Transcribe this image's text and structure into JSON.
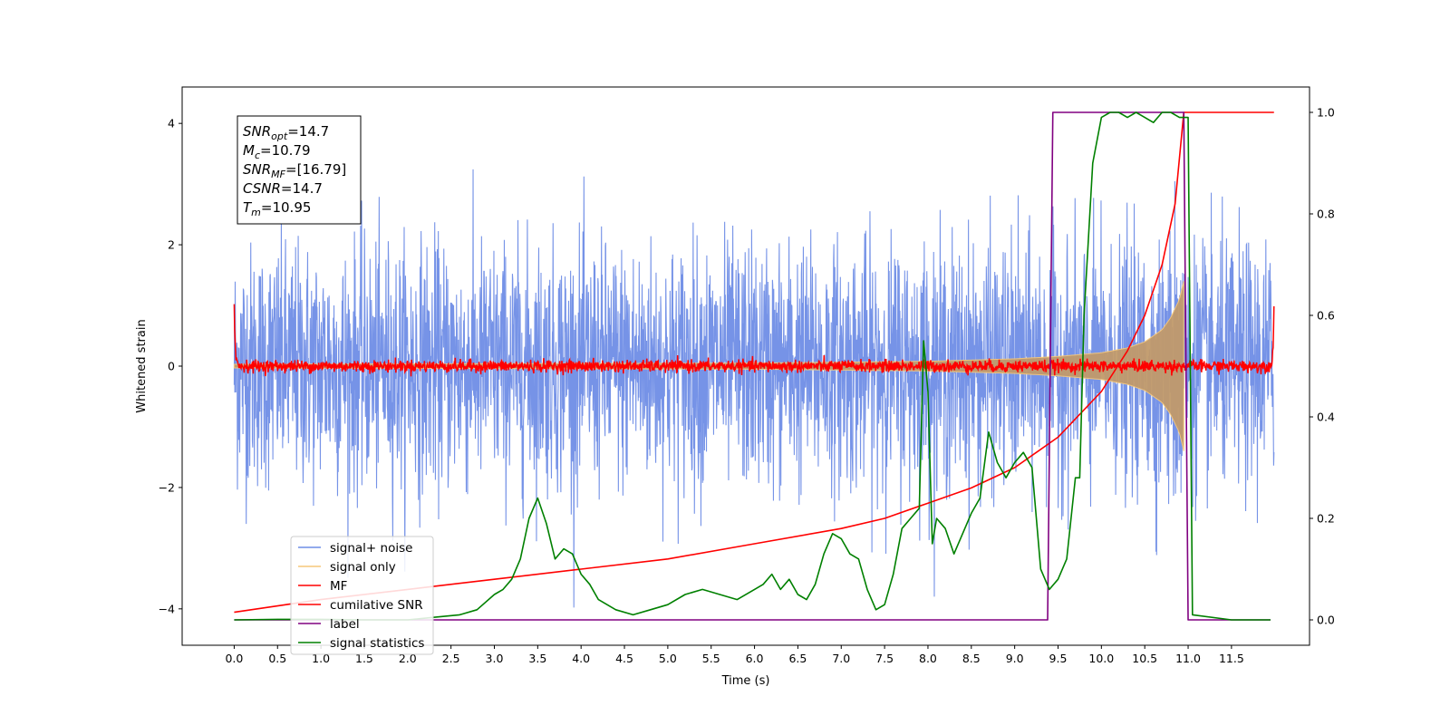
{
  "chart_data": {
    "type": "line",
    "xlabel": "Time (s)",
    "ylabel": "Whitened strain",
    "xlim": [
      -0.6,
      12.4
    ],
    "ylim": [
      -4.6,
      4.6
    ],
    "y2lim": [
      -0.05,
      1.05
    ],
    "x_ticks": [
      0.0,
      0.5,
      1.0,
      1.5,
      2.0,
      2.5,
      3.0,
      3.5,
      4.0,
      4.5,
      5.0,
      5.5,
      6.0,
      6.5,
      7.0,
      7.5,
      8.0,
      8.5,
      9.0,
      9.5,
      10.0,
      10.5,
      11.0,
      11.5
    ],
    "x_tick_labels": [
      "0.0",
      "0.5",
      "1.0",
      "1.5",
      "2.0",
      "2.5",
      "3.0",
      "3.5",
      "4.0",
      "4.5",
      "5.0",
      "5.5",
      "6.0",
      "6.5",
      "7.0",
      "7.5",
      "8.0",
      "8.5",
      "9.0",
      "9.5",
      "10.0",
      "10.5",
      "11.0",
      "11.5"
    ],
    "y_ticks": [
      -4,
      -2,
      0,
      2,
      4
    ],
    "y_tick_labels": [
      "−4",
      "−2",
      "0",
      "2",
      "4"
    ],
    "y2_ticks": [
      0.0,
      0.2,
      0.4,
      0.6,
      0.8,
      1.0
    ],
    "y2_tick_labels": [
      "0.0",
      "0.2",
      "0.4",
      "0.6",
      "0.8",
      "1.0"
    ],
    "legend": {
      "placement": "lower-left",
      "entries": [
        {
          "label": "signal+ noise",
          "color": "#6f8de6"
        },
        {
          "label": "signal only",
          "color": "#f5c77a"
        },
        {
          "label": "MF",
          "color": "#ff0000"
        },
        {
          "label": "cumilative SNR",
          "color": "#ff0000"
        },
        {
          "label": "label",
          "color": "#800080"
        },
        {
          "label": "signal statistics",
          "color": "#008000"
        }
      ]
    },
    "annotation": {
      "placement": "top-left",
      "lines": [
        {
          "var": "SNR",
          "sub": "opt",
          "value": "=14.7"
        },
        {
          "var": "M",
          "sub": "c",
          "value": "=10.79"
        },
        {
          "var": "SNR",
          "sub": "MF",
          "value": "=[16.79]"
        },
        {
          "var": "CSNR",
          "sub": "",
          "value": "=14.7"
        },
        {
          "var": "T",
          "sub": "m",
          "value": "=10.95"
        }
      ]
    },
    "series": [
      {
        "name": "signal+ noise",
        "axis": "left",
        "color": "#6f8de6",
        "x_range": [
          0.0,
          11.99
        ],
        "noise_std": 1.0,
        "peak_extent": [
          -4.1,
          3.8
        ]
      },
      {
        "name": "signal only",
        "axis": "left",
        "color": "#f5c77a",
        "type": "chirp",
        "x_range": [
          0.0,
          10.95
        ],
        "envelope": {
          "x": [
            0.0,
            6.0,
            8.0,
            9.0,
            9.5,
            10.0,
            10.3,
            10.5,
            10.7,
            10.8,
            10.9,
            10.95
          ],
          "y": [
            0.03,
            0.05,
            0.08,
            0.12,
            0.16,
            0.22,
            0.3,
            0.4,
            0.6,
            0.8,
            1.1,
            1.4
          ]
        }
      },
      {
        "name": "MF",
        "axis": "left",
        "color": "#ff0000",
        "x_range": [
          0.0,
          11.99
        ],
        "baseline": 0.0,
        "noise_std": 0.05,
        "edges": [
          [
            0.0,
            1.0
          ],
          [
            11.99,
            0.85
          ]
        ]
      },
      {
        "name": "cumilative SNR",
        "axis": "right",
        "color": "#ff0000",
        "x": [
          0.0,
          1.0,
          2.0,
          3.0,
          4.0,
          5.0,
          6.0,
          7.0,
          7.5,
          8.0,
          8.5,
          9.0,
          9.5,
          10.0,
          10.3,
          10.5,
          10.7,
          10.85,
          10.95,
          11.05,
          11.99
        ],
        "y": [
          0.015,
          0.04,
          0.06,
          0.08,
          0.1,
          0.12,
          0.15,
          0.18,
          0.2,
          0.23,
          0.26,
          0.3,
          0.36,
          0.45,
          0.53,
          0.6,
          0.7,
          0.82,
          1.0,
          1.0,
          1.0
        ]
      },
      {
        "name": "label",
        "axis": "right",
        "color": "#800080",
        "x": [
          0.0,
          9.38,
          9.44,
          10.95,
          11.0,
          11.95
        ],
        "y": [
          0.0,
          0.0,
          1.0,
          1.0,
          0.0,
          0.0
        ]
      },
      {
        "name": "signal statistics",
        "axis": "right",
        "color": "#008000",
        "x": [
          0.0,
          0.5,
          1.0,
          1.5,
          2.0,
          2.3,
          2.6,
          2.8,
          3.0,
          3.1,
          3.2,
          3.3,
          3.4,
          3.5,
          3.6,
          3.7,
          3.8,
          3.9,
          4.0,
          4.1,
          4.2,
          4.4,
          4.6,
          4.8,
          5.0,
          5.2,
          5.4,
          5.6,
          5.8,
          6.0,
          6.1,
          6.2,
          6.3,
          6.4,
          6.5,
          6.6,
          6.7,
          6.8,
          6.9,
          7.0,
          7.1,
          7.2,
          7.3,
          7.4,
          7.5,
          7.6,
          7.7,
          7.8,
          7.9,
          7.95,
          8.0,
          8.05,
          8.1,
          8.2,
          8.3,
          8.4,
          8.5,
          8.6,
          8.7,
          8.8,
          8.9,
          9.0,
          9.1,
          9.2,
          9.3,
          9.4,
          9.5,
          9.6,
          9.7,
          9.75,
          9.8,
          9.85,
          9.9,
          10.0,
          10.1,
          10.2,
          10.3,
          10.4,
          10.5,
          10.6,
          10.7,
          10.8,
          10.9,
          10.95,
          11.0,
          11.05,
          11.5,
          11.95
        ],
        "y": [
          0.0,
          0.001,
          0.001,
          0.0,
          0.0,
          0.005,
          0.01,
          0.02,
          0.05,
          0.06,
          0.08,
          0.12,
          0.2,
          0.24,
          0.19,
          0.12,
          0.14,
          0.13,
          0.09,
          0.07,
          0.04,
          0.02,
          0.01,
          0.02,
          0.03,
          0.05,
          0.06,
          0.05,
          0.04,
          0.06,
          0.07,
          0.09,
          0.06,
          0.08,
          0.05,
          0.04,
          0.07,
          0.13,
          0.17,
          0.16,
          0.13,
          0.12,
          0.06,
          0.02,
          0.03,
          0.09,
          0.18,
          0.2,
          0.22,
          0.55,
          0.45,
          0.15,
          0.2,
          0.18,
          0.13,
          0.17,
          0.21,
          0.24,
          0.37,
          0.31,
          0.28,
          0.31,
          0.33,
          0.3,
          0.1,
          0.06,
          0.08,
          0.12,
          0.28,
          0.28,
          0.6,
          0.75,
          0.9,
          0.99,
          1.0,
          1.0,
          0.99,
          1.0,
          0.99,
          0.98,
          1.0,
          1.0,
          0.99,
          0.99,
          0.99,
          0.01,
          0.0,
          0.0
        ]
      }
    ]
  }
}
